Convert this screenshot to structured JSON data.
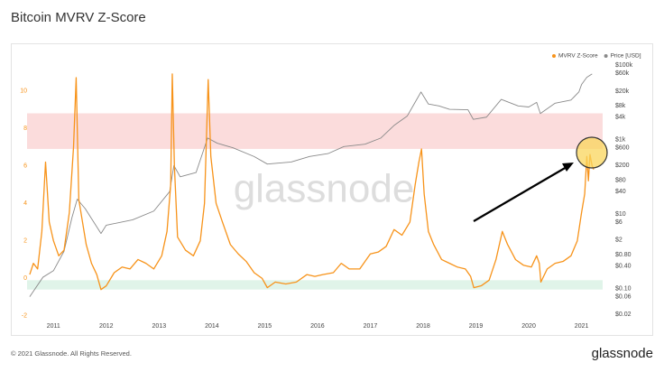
{
  "chart_data": {
    "type": "line",
    "title": "Bitcoin MVRV Z-Score",
    "watermark": "glassnode",
    "legend": "top-right",
    "grid": false,
    "xlim": [
      2010.5,
      2021.4
    ],
    "xticks": [
      2011,
      2012,
      2013,
      2014,
      2015,
      2016,
      2017,
      2018,
      2019,
      2020,
      2021
    ],
    "ylim": [
      -2.3,
      12.05
    ],
    "yticks": [
      -2,
      0,
      2,
      4,
      6,
      8,
      10
    ],
    "y2scale": "log",
    "y2lim": [
      0.013,
      220000
    ],
    "y2ticks": [
      {
        "value": 0.02,
        "label": "$0.02"
      },
      {
        "value": 0.06,
        "label": "$0.06"
      },
      {
        "value": 0.1,
        "label": "$0.10"
      },
      {
        "value": 0.4,
        "label": "$0.40"
      },
      {
        "value": 0.8,
        "label": "$0.80"
      },
      {
        "value": 2,
        "label": "$2"
      },
      {
        "value": 6,
        "label": "$6"
      },
      {
        "value": 10,
        "label": "$10"
      },
      {
        "value": 40,
        "label": "$40"
      },
      {
        "value": 80,
        "label": "$80"
      },
      {
        "value": 200,
        "label": "$200"
      },
      {
        "value": 600,
        "label": "$600"
      },
      {
        "value": 1000,
        "label": "$1k"
      },
      {
        "value": 4000,
        "label": "$4k"
      },
      {
        "value": 8000,
        "label": "$8k"
      },
      {
        "value": 20000,
        "label": "$20k"
      },
      {
        "value": 60000,
        "label": "$60k"
      },
      {
        "value": 100000,
        "label": "$100k"
      }
    ],
    "zones": [
      {
        "from": 6.9,
        "to": 8.8,
        "color": "#fbdcdc"
      },
      {
        "from": -0.6,
        "to": -0.1,
        "color": "#e0f4e9"
      }
    ],
    "series": [
      {
        "name": "MVRV Z-Score",
        "color": "#f7931a",
        "x": [
          2010.55,
          2010.62,
          2010.7,
          2010.78,
          2010.85,
          2010.92,
          2011.0,
          2011.1,
          2011.2,
          2011.3,
          2011.38,
          2011.43,
          2011.48,
          2011.55,
          2011.62,
          2011.72,
          2011.82,
          2011.9,
          2012.0,
          2012.15,
          2012.3,
          2012.45,
          2012.6,
          2012.75,
          2012.9,
          2013.05,
          2013.15,
          2013.22,
          2013.25,
          2013.29,
          2013.35,
          2013.5,
          2013.65,
          2013.78,
          2013.86,
          2013.93,
          2013.98,
          2014.08,
          2014.2,
          2014.35,
          2014.5,
          2014.65,
          2014.8,
          2014.95,
          2015.05,
          2015.2,
          2015.4,
          2015.6,
          2015.8,
          2015.95,
          2016.1,
          2016.3,
          2016.45,
          2016.6,
          2016.8,
          2017.0,
          2017.15,
          2017.3,
          2017.45,
          2017.6,
          2017.75,
          2017.85,
          2017.92,
          2017.97,
          2018.02,
          2018.1,
          2018.2,
          2018.35,
          2018.5,
          2018.65,
          2018.8,
          2018.9,
          2018.96,
          2019.1,
          2019.25,
          2019.38,
          2019.5,
          2019.6,
          2019.75,
          2019.9,
          2020.05,
          2020.15,
          2020.2,
          2020.23,
          2020.35,
          2020.5,
          2020.65,
          2020.8,
          2020.92,
          2021.0,
          2021.06,
          2021.1,
          2021.13,
          2021.16,
          2021.2,
          2021.23
        ],
        "values": [
          0.2,
          0.8,
          0.5,
          2.5,
          6.2,
          3.0,
          2.0,
          1.2,
          1.5,
          3.5,
          7.0,
          10.7,
          4.2,
          3.0,
          1.8,
          0.8,
          0.2,
          -0.6,
          -0.4,
          0.3,
          0.6,
          0.5,
          1.0,
          0.8,
          0.5,
          1.2,
          2.5,
          5.0,
          10.9,
          6.0,
          2.2,
          1.5,
          1.2,
          2.0,
          4.0,
          10.6,
          6.5,
          4.0,
          3.0,
          1.8,
          1.3,
          0.9,
          0.3,
          0.0,
          -0.5,
          -0.2,
          -0.3,
          -0.2,
          0.2,
          0.1,
          0.2,
          0.3,
          0.8,
          0.5,
          0.5,
          1.3,
          1.4,
          1.7,
          2.6,
          2.3,
          3.0,
          5.0,
          6.2,
          6.9,
          4.5,
          2.5,
          1.8,
          1.0,
          0.8,
          0.6,
          0.5,
          0.1,
          -0.5,
          -0.4,
          -0.1,
          1.0,
          2.5,
          1.8,
          1.0,
          0.7,
          0.6,
          1.2,
          0.8,
          -0.2,
          0.5,
          0.8,
          0.9,
          1.2,
          2.0,
          3.5,
          4.5,
          6.5,
          5.2,
          6.6,
          6.0,
          5.8
        ]
      },
      {
        "name": "Price [USD]",
        "color": "#8a8a8a",
        "axis": "y2",
        "x": [
          2010.55,
          2010.8,
          2011.0,
          2011.2,
          2011.35,
          2011.45,
          2011.6,
          2011.9,
          2012.0,
          2012.5,
          2012.9,
          2013.2,
          2013.28,
          2013.4,
          2013.7,
          2013.92,
          2014.1,
          2014.4,
          2014.8,
          2015.05,
          2015.5,
          2015.85,
          2016.2,
          2016.5,
          2016.9,
          2017.2,
          2017.45,
          2017.7,
          2017.96,
          2018.1,
          2018.3,
          2018.5,
          2018.85,
          2018.95,
          2019.2,
          2019.48,
          2019.8,
          2020.0,
          2020.15,
          2020.22,
          2020.5,
          2020.8,
          2020.95,
          2021.0,
          2021.1,
          2021.2
        ],
        "values": [
          0.06,
          0.2,
          0.3,
          1,
          8,
          25,
          14,
          3,
          5,
          7,
          12,
          40,
          200,
          100,
          130,
          1100,
          800,
          600,
          350,
          220,
          250,
          350,
          420,
          650,
          750,
          1100,
          2400,
          4300,
          19000,
          9000,
          8000,
          6500,
          6300,
          3500,
          4000,
          12000,
          8000,
          7500,
          10000,
          5000,
          9500,
          11500,
          19000,
          30000,
          47000,
          58000
        ]
      }
    ]
  },
  "footer": {
    "copyright": "© 2021 Glassnode. All Rights Reserved.",
    "logo": "glassnode"
  }
}
